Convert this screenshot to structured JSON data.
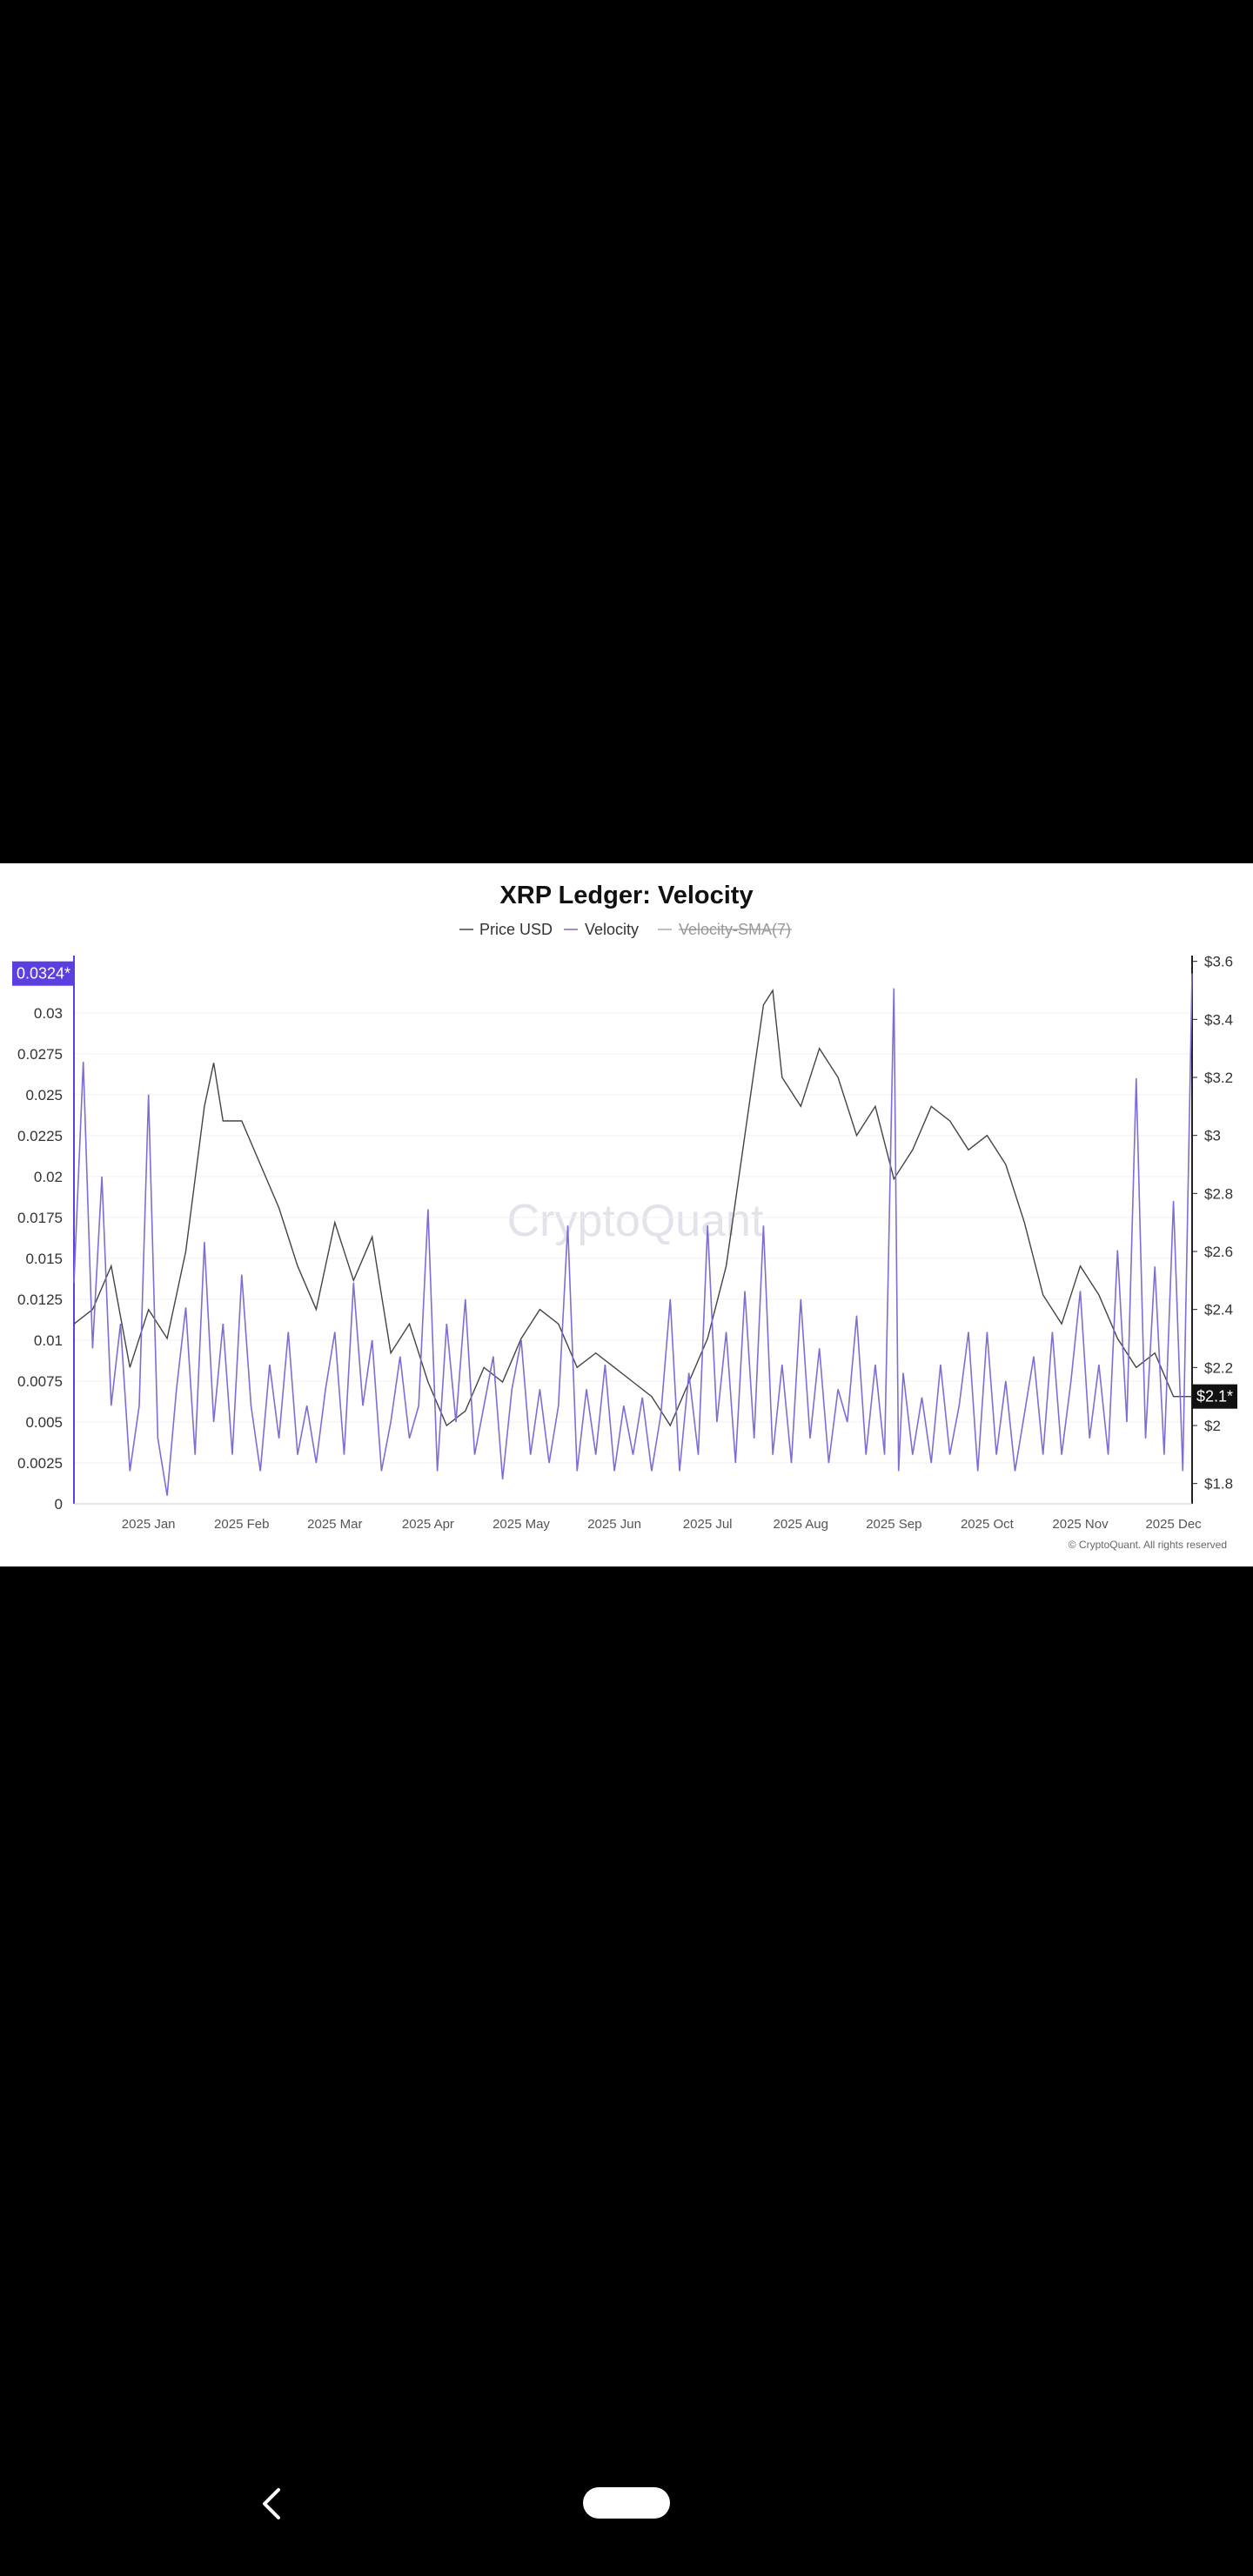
{
  "chart_data": {
    "type": "line",
    "title": "XRP Ledger: Velocity",
    "legend": [
      {
        "name": "Price USD",
        "color": "#444444",
        "hidden": false
      },
      {
        "name": "Velocity",
        "color": "#7b6fd6",
        "hidden": false
      },
      {
        "name": "Velocity-SMA(7)",
        "color": "#aaaaaa",
        "hidden": true
      }
    ],
    "x_tick_labels": [
      "2025 Jan",
      "2025 Feb",
      "2025 Mar",
      "2025 Apr",
      "2025 May",
      "2025 Jun",
      "2025 Jul",
      "2025 Aug",
      "2025 Sep",
      "2025 Oct",
      "2025 Nov",
      "2025 Dec"
    ],
    "x_tick_months": [
      1,
      2,
      3,
      4,
      5,
      6,
      7,
      8,
      9,
      10,
      11,
      12
    ],
    "x_range_months": [
      0.2,
      12.2
    ],
    "y_left": {
      "range": [
        0,
        0.0335
      ],
      "ticks": [
        0,
        0.0025,
        0.005,
        0.0075,
        0.01,
        0.0125,
        0.015,
        0.0175,
        0.02,
        0.0225,
        0.025,
        0.0275,
        0.03
      ],
      "tick_labels": [
        "0",
        "0.0025",
        "0.005",
        "0.0075",
        "0.01",
        "0.0125",
        "0.015",
        "0.0175",
        "0.02",
        "0.0225",
        "0.025",
        "0.0275",
        "0.03"
      ],
      "current_label": "0.0324*",
      "current_value": 0.0324,
      "color": "#5c3fe0"
    },
    "y_right": {
      "range": [
        1.73,
        3.62
      ],
      "ticks": [
        1.8,
        2.0,
        2.2,
        2.4,
        2.6,
        2.8,
        3.0,
        3.2,
        3.4,
        3.6
      ],
      "tick_labels": [
        "$1.8",
        "$2",
        "$2.2",
        "$2.4",
        "$2.6",
        "$2.8",
        "$3",
        "$3.2",
        "$3.4",
        "$3.6"
      ],
      "current_label": "$2.1*",
      "current_value": 2.1,
      "color": "#111111"
    },
    "grid": true,
    "series": [
      {
        "name": "Price USD",
        "axis": "right",
        "color": "#444444",
        "points": [
          [
            0.2,
            2.35
          ],
          [
            0.4,
            2.4
          ],
          [
            0.6,
            2.55
          ],
          [
            0.8,
            2.2
          ],
          [
            1.0,
            2.4
          ],
          [
            1.2,
            2.3
          ],
          [
            1.4,
            2.6
          ],
          [
            1.6,
            3.1
          ],
          [
            1.7,
            3.25
          ],
          [
            1.8,
            3.05
          ],
          [
            2.0,
            3.05
          ],
          [
            2.2,
            2.9
          ],
          [
            2.4,
            2.75
          ],
          [
            2.6,
            2.55
          ],
          [
            2.8,
            2.4
          ],
          [
            3.0,
            2.7
          ],
          [
            3.2,
            2.5
          ],
          [
            3.4,
            2.65
          ],
          [
            3.6,
            2.25
          ],
          [
            3.8,
            2.35
          ],
          [
            4.0,
            2.15
          ],
          [
            4.2,
            2.0
          ],
          [
            4.4,
            2.05
          ],
          [
            4.6,
            2.2
          ],
          [
            4.8,
            2.15
          ],
          [
            5.0,
            2.3
          ],
          [
            5.2,
            2.4
          ],
          [
            5.4,
            2.35
          ],
          [
            5.6,
            2.2
          ],
          [
            5.8,
            2.25
          ],
          [
            6.0,
            2.2
          ],
          [
            6.2,
            2.15
          ],
          [
            6.4,
            2.1
          ],
          [
            6.6,
            2.0
          ],
          [
            6.8,
            2.15
          ],
          [
            7.0,
            2.3
          ],
          [
            7.2,
            2.55
          ],
          [
            7.4,
            3.0
          ],
          [
            7.6,
            3.45
          ],
          [
            7.7,
            3.5
          ],
          [
            7.8,
            3.2
          ],
          [
            8.0,
            3.1
          ],
          [
            8.2,
            3.3
          ],
          [
            8.4,
            3.2
          ],
          [
            8.6,
            3.0
          ],
          [
            8.8,
            3.1
          ],
          [
            9.0,
            2.85
          ],
          [
            9.2,
            2.95
          ],
          [
            9.4,
            3.1
          ],
          [
            9.6,
            3.05
          ],
          [
            9.8,
            2.95
          ],
          [
            10.0,
            3.0
          ],
          [
            10.2,
            2.9
          ],
          [
            10.4,
            2.7
          ],
          [
            10.6,
            2.45
          ],
          [
            10.8,
            2.35
          ],
          [
            11.0,
            2.55
          ],
          [
            11.2,
            2.45
          ],
          [
            11.4,
            2.3
          ],
          [
            11.6,
            2.2
          ],
          [
            11.8,
            2.25
          ],
          [
            12.0,
            2.1
          ],
          [
            12.2,
            2.1
          ]
        ]
      },
      {
        "name": "Velocity",
        "axis": "left",
        "color": "#7b6fd6",
        "points": [
          [
            0.2,
            0.0135
          ],
          [
            0.3,
            0.027
          ],
          [
            0.4,
            0.0095
          ],
          [
            0.5,
            0.02
          ],
          [
            0.6,
            0.006
          ],
          [
            0.7,
            0.011
          ],
          [
            0.8,
            0.002
          ],
          [
            0.9,
            0.006
          ],
          [
            1.0,
            0.025
          ],
          [
            1.1,
            0.004
          ],
          [
            1.2,
            0.0005
          ],
          [
            1.3,
            0.007
          ],
          [
            1.4,
            0.012
          ],
          [
            1.5,
            0.003
          ],
          [
            1.6,
            0.016
          ],
          [
            1.7,
            0.005
          ],
          [
            1.8,
            0.011
          ],
          [
            1.9,
            0.003
          ],
          [
            2.0,
            0.014
          ],
          [
            2.1,
            0.006
          ],
          [
            2.2,
            0.002
          ],
          [
            2.3,
            0.0085
          ],
          [
            2.4,
            0.004
          ],
          [
            2.5,
            0.0105
          ],
          [
            2.6,
            0.003
          ],
          [
            2.7,
            0.006
          ],
          [
            2.8,
            0.0025
          ],
          [
            2.9,
            0.007
          ],
          [
            3.0,
            0.0105
          ],
          [
            3.1,
            0.003
          ],
          [
            3.2,
            0.0135
          ],
          [
            3.3,
            0.006
          ],
          [
            3.4,
            0.01
          ],
          [
            3.5,
            0.002
          ],
          [
            3.6,
            0.005
          ],
          [
            3.7,
            0.009
          ],
          [
            3.8,
            0.004
          ],
          [
            3.9,
            0.006
          ],
          [
            4.0,
            0.018
          ],
          [
            4.1,
            0.002
          ],
          [
            4.2,
            0.011
          ],
          [
            4.3,
            0.005
          ],
          [
            4.4,
            0.0125
          ],
          [
            4.5,
            0.003
          ],
          [
            4.6,
            0.006
          ],
          [
            4.7,
            0.009
          ],
          [
            4.8,
            0.0015
          ],
          [
            4.9,
            0.007
          ],
          [
            5.0,
            0.01
          ],
          [
            5.1,
            0.003
          ],
          [
            5.2,
            0.007
          ],
          [
            5.3,
            0.0025
          ],
          [
            5.4,
            0.006
          ],
          [
            5.5,
            0.017
          ],
          [
            5.6,
            0.002
          ],
          [
            5.7,
            0.007
          ],
          [
            5.8,
            0.003
          ],
          [
            5.9,
            0.0085
          ],
          [
            6.0,
            0.002
          ],
          [
            6.1,
            0.006
          ],
          [
            6.2,
            0.003
          ],
          [
            6.3,
            0.0065
          ],
          [
            6.4,
            0.002
          ],
          [
            6.5,
            0.0055
          ],
          [
            6.6,
            0.0125
          ],
          [
            6.7,
            0.002
          ],
          [
            6.8,
            0.008
          ],
          [
            6.9,
            0.003
          ],
          [
            7.0,
            0.017
          ],
          [
            7.1,
            0.005
          ],
          [
            7.2,
            0.0105
          ],
          [
            7.3,
            0.0025
          ],
          [
            7.4,
            0.013
          ],
          [
            7.5,
            0.004
          ],
          [
            7.6,
            0.017
          ],
          [
            7.7,
            0.003
          ],
          [
            7.8,
            0.0085
          ],
          [
            7.9,
            0.0025
          ],
          [
            8.0,
            0.0125
          ],
          [
            8.1,
            0.004
          ],
          [
            8.2,
            0.0095
          ],
          [
            8.3,
            0.0025
          ],
          [
            8.4,
            0.007
          ],
          [
            8.5,
            0.005
          ],
          [
            8.6,
            0.0115
          ],
          [
            8.7,
            0.003
          ],
          [
            8.8,
            0.0085
          ],
          [
            8.9,
            0.003
          ],
          [
            9.0,
            0.0315
          ],
          [
            9.05,
            0.002
          ],
          [
            9.1,
            0.008
          ],
          [
            9.2,
            0.003
          ],
          [
            9.3,
            0.0065
          ],
          [
            9.4,
            0.0025
          ],
          [
            9.5,
            0.0085
          ],
          [
            9.6,
            0.003
          ],
          [
            9.7,
            0.006
          ],
          [
            9.8,
            0.0105
          ],
          [
            9.9,
            0.002
          ],
          [
            10.0,
            0.0105
          ],
          [
            10.1,
            0.003
          ],
          [
            10.2,
            0.0075
          ],
          [
            10.3,
            0.002
          ],
          [
            10.4,
            0.0055
          ],
          [
            10.5,
            0.009
          ],
          [
            10.6,
            0.003
          ],
          [
            10.7,
            0.0105
          ],
          [
            10.8,
            0.003
          ],
          [
            10.9,
            0.0075
          ],
          [
            11.0,
            0.013
          ],
          [
            11.1,
            0.004
          ],
          [
            11.2,
            0.0085
          ],
          [
            11.3,
            0.003
          ],
          [
            11.4,
            0.0155
          ],
          [
            11.5,
            0.005
          ],
          [
            11.6,
            0.026
          ],
          [
            11.7,
            0.004
          ],
          [
            11.8,
            0.0145
          ],
          [
            11.9,
            0.003
          ],
          [
            12.0,
            0.0185
          ],
          [
            12.1,
            0.002
          ],
          [
            12.2,
            0.0324
          ]
        ]
      }
    ],
    "watermark": "CryptoQuant",
    "copyright": "© CryptoQuant. All rights reserved"
  }
}
